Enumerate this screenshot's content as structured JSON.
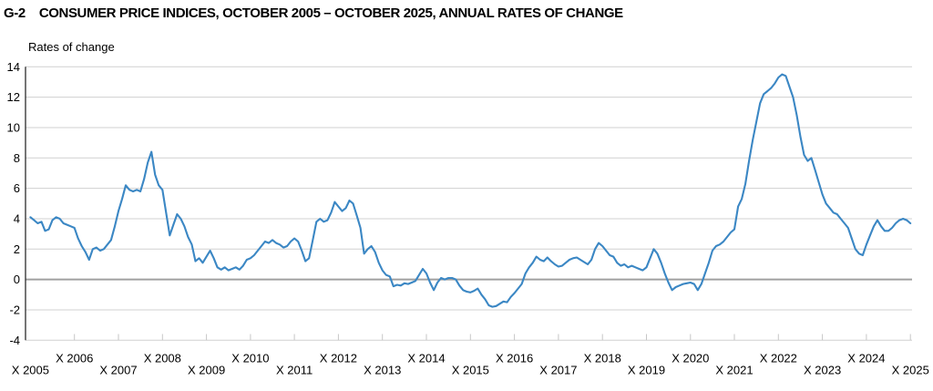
{
  "header": {
    "figure_number": "G-2"
  },
  "chart_data": {
    "type": "line",
    "title": "CONSUMER PRICE INDICES, OCTOBER 2005 – OCTOBER 2025, ANNUAL RATES OF CHANGE",
    "ylabel": "Rates of change",
    "xlabel": "",
    "ylim": [
      -4,
      14
    ],
    "y_ticks": [
      14,
      12,
      10,
      8,
      6,
      4,
      2,
      0,
      -2,
      -4
    ],
    "x_tick_labels": [
      "X 2005",
      "X 2006",
      "X 2007",
      "X 2008",
      "X 2009",
      "X 2010",
      "X 2011",
      "X 2012",
      "X 2013",
      "X 2014",
      "X 2015",
      "X 2016",
      "X 2017",
      "X 2018",
      "X 2019",
      "X 2020",
      "X 2021",
      "X 2022",
      "X 2023",
      "X 2024",
      "X 2025"
    ],
    "grid": "horizontal",
    "zero_line": true,
    "legend": "none",
    "colors": {
      "line": "#3b87c4",
      "gridline": "#d0d0d0",
      "zero_line": "#a0a0a0",
      "axis_line": "#2b2b2b",
      "tick": "#c6c6c6",
      "text": "#000000"
    },
    "series": [
      {
        "name": "Consumer price indices, annual rate of change (%)",
        "start": "X 2005",
        "end": "X 2025",
        "frequency": "monthly",
        "values": [
          4.1,
          3.9,
          3.7,
          3.8,
          3.2,
          3.3,
          3.9,
          4.1,
          4.0,
          3.7,
          3.6,
          3.5,
          3.4,
          2.7,
          2.2,
          1.8,
          1.3,
          2.0,
          2.1,
          1.9,
          2.0,
          2.3,
          2.6,
          3.5,
          4.5,
          5.3,
          6.2,
          5.9,
          5.8,
          5.9,
          5.8,
          6.6,
          7.7,
          8.4,
          6.9,
          6.2,
          5.9,
          4.4,
          2.9,
          3.6,
          4.3,
          4.0,
          3.5,
          2.8,
          2.3,
          1.2,
          1.4,
          1.1,
          1.5,
          1.9,
          1.4,
          0.8,
          0.65,
          0.8,
          0.6,
          0.7,
          0.8,
          0.65,
          0.9,
          1.3,
          1.4,
          1.6,
          1.9,
          2.2,
          2.5,
          2.4,
          2.6,
          2.4,
          2.3,
          2.1,
          2.2,
          2.5,
          2.7,
          2.5,
          1.9,
          1.2,
          1.4,
          2.6,
          3.8,
          4.0,
          3.8,
          3.9,
          4.4,
          5.1,
          4.8,
          4.5,
          4.7,
          5.2,
          5.0,
          4.2,
          3.4,
          1.7,
          2.0,
          2.2,
          1.8,
          1.1,
          0.6,
          0.3,
          0.2,
          -0.45,
          -0.35,
          -0.4,
          -0.25,
          -0.3,
          -0.2,
          -0.1,
          0.3,
          0.7,
          0.4,
          -0.2,
          -0.7,
          -0.2,
          0.1,
          0.0,
          0.1,
          0.1,
          0.0,
          -0.4,
          -0.7,
          -0.8,
          -0.85,
          -0.75,
          -0.6,
          -1.0,
          -1.3,
          -1.7,
          -1.8,
          -1.75,
          -1.6,
          -1.45,
          -1.5,
          -1.15,
          -0.9,
          -0.6,
          -0.3,
          0.4,
          0.8,
          1.1,
          1.5,
          1.3,
          1.2,
          1.45,
          1.2,
          1.0,
          0.85,
          0.9,
          1.1,
          1.3,
          1.4,
          1.45,
          1.3,
          1.15,
          1.0,
          1.3,
          2.0,
          2.4,
          2.2,
          1.9,
          1.6,
          1.5,
          1.1,
          0.9,
          1.0,
          0.8,
          0.9,
          0.8,
          0.7,
          0.6,
          0.8,
          1.4,
          2.0,
          1.7,
          1.1,
          0.4,
          -0.2,
          -0.7,
          -0.5,
          -0.4,
          -0.3,
          -0.25,
          -0.2,
          -0.3,
          -0.7,
          -0.3,
          0.4,
          1.1,
          1.9,
          2.2,
          2.3,
          2.5,
          2.8,
          3.1,
          3.3,
          4.8,
          5.3,
          6.3,
          7.8,
          9.2,
          10.4,
          11.6,
          12.2,
          12.4,
          12.6,
          12.9,
          13.3,
          13.5,
          13.4,
          12.7,
          12.0,
          10.8,
          9.4,
          8.2,
          7.8,
          8.0,
          7.2,
          6.4,
          5.6,
          5.0,
          4.7,
          4.4,
          4.3,
          4.0,
          3.7,
          3.4,
          2.7,
          2.0,
          1.7,
          1.6,
          2.3,
          2.9,
          3.5,
          3.9,
          3.5,
          3.2,
          3.2,
          3.4,
          3.7,
          3.9,
          4.0,
          3.9,
          3.7
        ]
      }
    ]
  }
}
